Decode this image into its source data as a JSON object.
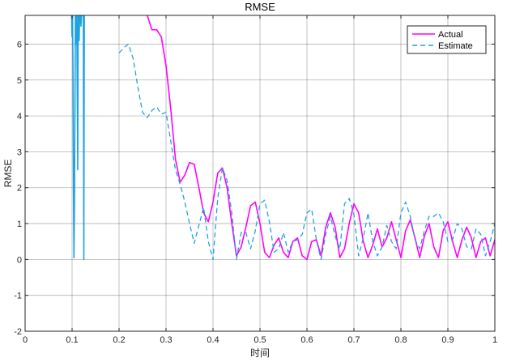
{
  "chart_data": {
    "type": "line",
    "title": "RMSE",
    "xlabel": "时间",
    "ylabel": "RMSE",
    "xlim": [
      0,
      1
    ],
    "ylim": [
      -2,
      6.8
    ],
    "xticks": [
      0,
      0.1,
      0.2,
      0.3,
      0.4,
      0.5,
      0.6,
      0.7,
      0.8,
      0.9,
      1
    ],
    "xtick_labels": [
      "0",
      "0.1",
      "0.2",
      "0.3",
      "0.4",
      "0.5",
      "0.6",
      "0.7",
      "0.8",
      "0.9",
      "1"
    ],
    "yticks": [
      -2,
      -1,
      0,
      1,
      2,
      3,
      4,
      5,
      6
    ],
    "ytick_labels": [
      "-2",
      "-1",
      "0",
      "1",
      "2",
      "3",
      "4",
      "5",
      "6"
    ],
    "grid": true,
    "legend_position": "top-right",
    "series": [
      {
        "name": "Actual",
        "color": "#ff00ff",
        "dash": "solid",
        "x": [
          0.26,
          0.27,
          0.28,
          0.29,
          0.3,
          0.31,
          0.32,
          0.33,
          0.34,
          0.35,
          0.36,
          0.37,
          0.38,
          0.39,
          0.4,
          0.41,
          0.42,
          0.43,
          0.44,
          0.45,
          0.46,
          0.47,
          0.48,
          0.49,
          0.5,
          0.51,
          0.52,
          0.53,
          0.54,
          0.55,
          0.56,
          0.57,
          0.58,
          0.59,
          0.6,
          0.61,
          0.62,
          0.63,
          0.64,
          0.65,
          0.66,
          0.67,
          0.68,
          0.69,
          0.7,
          0.71,
          0.72,
          0.73,
          0.74,
          0.75,
          0.76,
          0.77,
          0.78,
          0.79,
          0.8,
          0.81,
          0.82,
          0.83,
          0.84,
          0.85,
          0.86,
          0.87,
          0.88,
          0.89,
          0.9,
          0.91,
          0.92,
          0.93,
          0.94,
          0.95,
          0.96,
          0.97,
          0.98,
          0.99,
          1.0
        ],
        "y": [
          6.8,
          6.4,
          6.4,
          6.2,
          5.4,
          4.2,
          2.8,
          2.15,
          2.35,
          2.7,
          2.65,
          2.0,
          1.3,
          1.05,
          1.6,
          2.4,
          2.55,
          2.0,
          1.0,
          0.1,
          0.35,
          0.9,
          1.5,
          1.6,
          1.0,
          0.2,
          0.05,
          0.4,
          0.6,
          0.2,
          0.05,
          0.5,
          0.6,
          0.1,
          0.0,
          0.5,
          0.55,
          0.1,
          0.9,
          1.3,
          0.9,
          0.05,
          0.3,
          1.0,
          1.55,
          1.3,
          0.5,
          0.05,
          0.4,
          0.85,
          0.35,
          0.6,
          1.05,
          0.55,
          0.05,
          0.8,
          1.1,
          0.6,
          0.05,
          0.65,
          1.0,
          0.35,
          0.05,
          0.8,
          1.05,
          0.5,
          0.05,
          0.55,
          0.9,
          0.6,
          0.05,
          0.5,
          0.6,
          0.1,
          0.55
        ]
      },
      {
        "name": "Estimate",
        "color": "#1fa2e0",
        "dash": "dashed",
        "x": [
          0.2,
          0.21,
          0.22,
          0.23,
          0.24,
          0.25,
          0.26,
          0.27,
          0.28,
          0.29,
          0.3,
          0.31,
          0.32,
          0.33,
          0.34,
          0.35,
          0.36,
          0.37,
          0.38,
          0.39,
          0.4,
          0.41,
          0.42,
          0.43,
          0.44,
          0.45,
          0.46,
          0.47,
          0.48,
          0.49,
          0.5,
          0.51,
          0.52,
          0.53,
          0.54,
          0.55,
          0.56,
          0.57,
          0.58,
          0.59,
          0.6,
          0.61,
          0.62,
          0.63,
          0.64,
          0.65,
          0.66,
          0.67,
          0.68,
          0.69,
          0.7,
          0.71,
          0.72,
          0.73,
          0.74,
          0.75,
          0.76,
          0.77,
          0.78,
          0.79,
          0.8,
          0.81,
          0.82,
          0.83,
          0.84,
          0.85,
          0.86,
          0.87,
          0.88,
          0.89,
          0.9,
          0.91,
          0.92,
          0.93,
          0.94,
          0.95,
          0.96,
          0.97,
          0.98,
          0.99,
          1.0
        ],
        "y": [
          5.75,
          5.9,
          6.0,
          5.6,
          4.8,
          4.1,
          3.95,
          4.15,
          4.25,
          4.05,
          4.1,
          3.3,
          2.5,
          2.1,
          1.6,
          1.0,
          0.45,
          0.95,
          1.45,
          0.5,
          0.0,
          1.7,
          2.55,
          2.2,
          1.3,
          0.0,
          0.75,
          0.75,
          0.3,
          0.8,
          1.55,
          1.65,
          1.05,
          0.2,
          0.3,
          0.75,
          0.2,
          0.5,
          0.55,
          0.7,
          1.3,
          1.4,
          0.55,
          0.0,
          0.7,
          1.2,
          0.65,
          0.3,
          1.55,
          1.7,
          1.25,
          0.1,
          0.6,
          1.3,
          0.5,
          0.1,
          0.35,
          0.95,
          0.5,
          0.3,
          1.3,
          1.6,
          1.2,
          0.55,
          0.3,
          0.8,
          1.2,
          1.2,
          1.3,
          1.05,
          0.5,
          0.55,
          1.0,
          0.85,
          0.35,
          0.3,
          0.85,
          0.7,
          0.1,
          0.5,
          1.0
        ]
      },
      {
        "name": "",
        "color": "#1fa2e0",
        "dash": "solid",
        "x": [
          0.099,
          0.1,
          0.101,
          0.102,
          0.103,
          0.104,
          0.105,
          0.106,
          0.107,
          0.108,
          0.109,
          0.11,
          0.111,
          0.112,
          0.113,
          0.114,
          0.115,
          0.116,
          0.117,
          0.118,
          0.119,
          0.12,
          0.121,
          0.122,
          0.123,
          0.124,
          0.125,
          0.126,
          0.127
        ],
        "y": [
          6.8,
          6.2,
          6.8,
          5.0,
          2.0,
          0.05,
          1.5,
          4.0,
          6.8,
          6.8,
          6.0,
          6.8,
          4.5,
          2.5,
          6.8,
          6.8,
          6.1,
          6.8,
          6.8,
          6.8,
          6.5,
          6.8,
          6.8,
          6.8,
          6.8,
          6.8,
          0.0,
          6.8,
          6.8
        ]
      }
    ]
  }
}
